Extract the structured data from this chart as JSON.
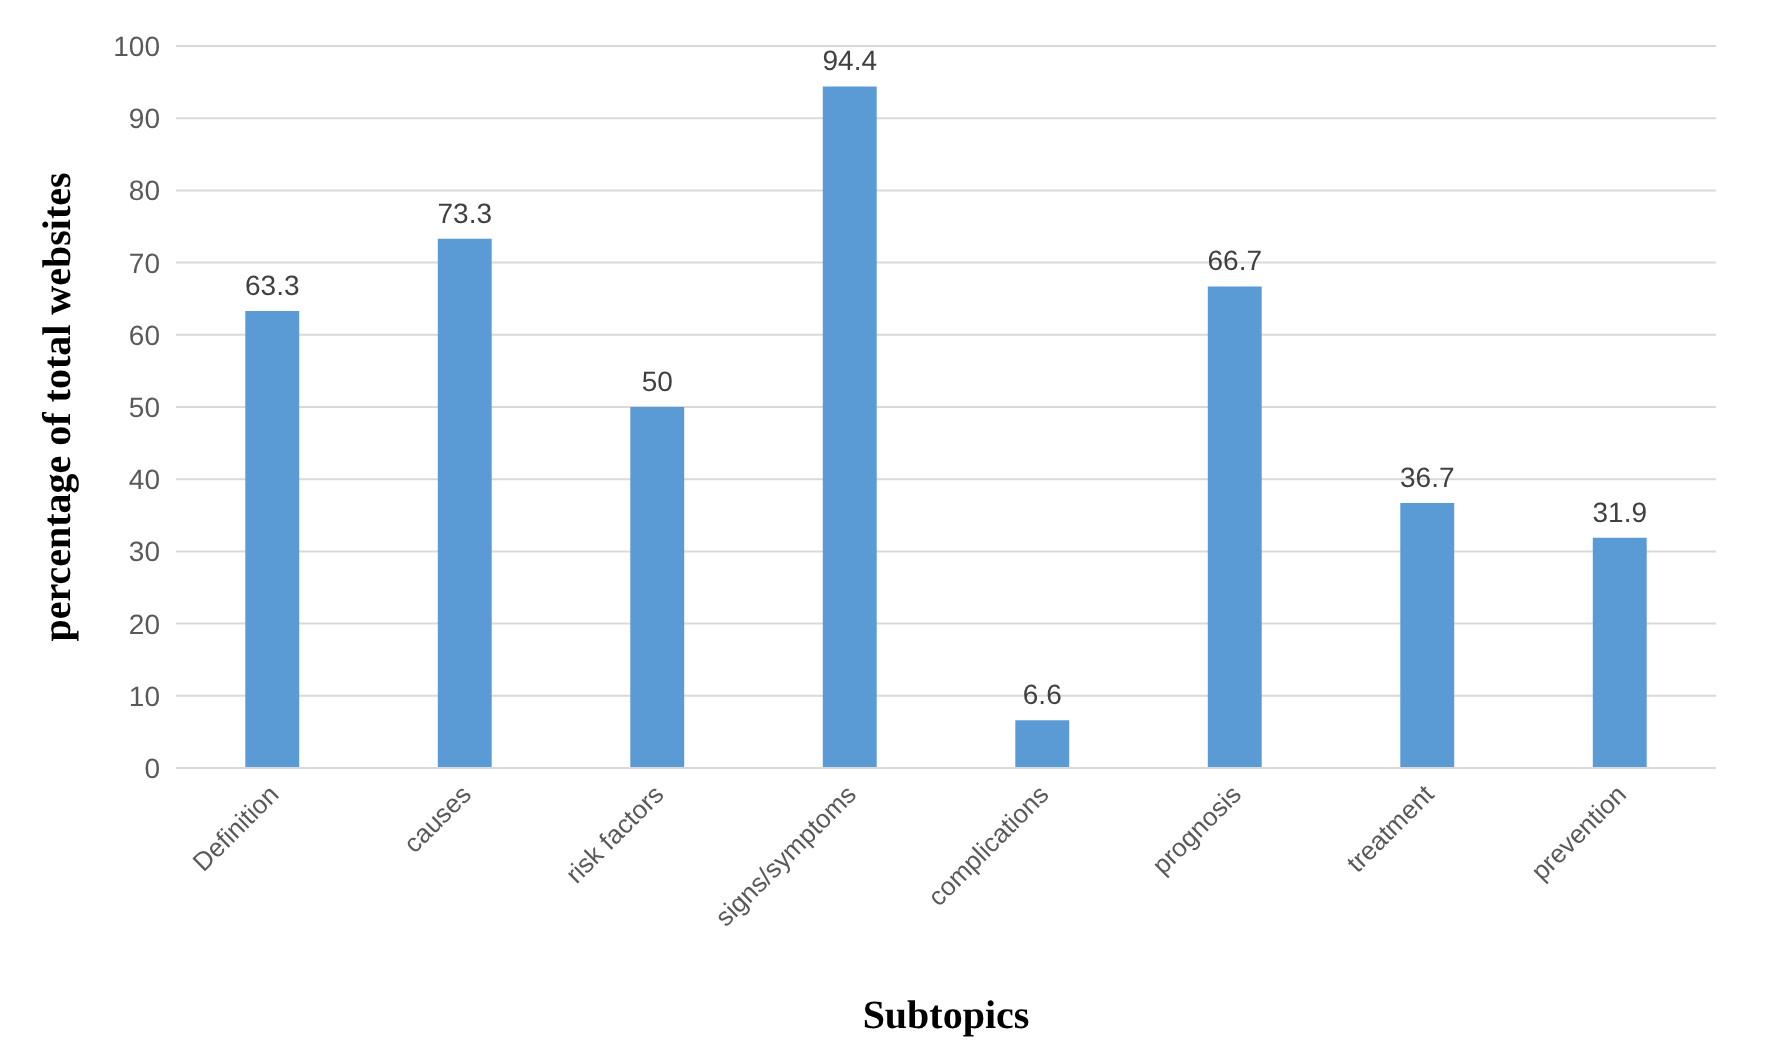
{
  "chart_data": {
    "type": "bar",
    "xlabel": "Subtopics",
    "ylabel": "percentage of total websites",
    "categories": [
      "Definition",
      "causes",
      "risk factors",
      "signs/symptoms",
      "complications",
      "prognosis",
      "treatment",
      "prevention"
    ],
    "values": [
      63.3,
      73.3,
      50,
      94.4,
      6.6,
      66.7,
      36.7,
      31.9
    ],
    "color": "#5b9bd5",
    "ylim": [
      0,
      100
    ],
    "yticks": [
      0,
      10,
      20,
      30,
      40,
      50,
      60,
      70,
      80,
      90,
      100
    ],
    "grid": "y",
    "data_labels": true
  }
}
